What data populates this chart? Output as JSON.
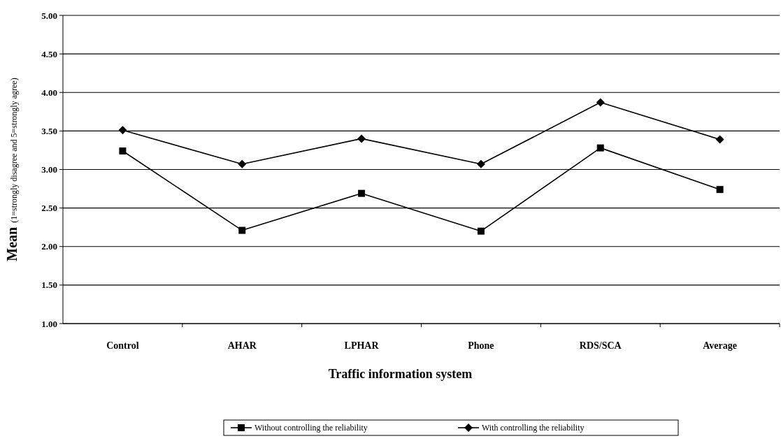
{
  "chart_data": {
    "type": "line",
    "xlabel": "Traffic information system",
    "ylabel": "Mean (1=strongly disagree and 5=strongly agree)",
    "categories": [
      "Control",
      "AHAR",
      "LPHAR",
      "Phone",
      "RDS/SCA",
      "Average"
    ],
    "series": [
      {
        "name": "Without controlling the reliability",
        "color": "#000000",
        "marker": "square",
        "values": [
          3.24,
          2.21,
          2.69,
          2.2,
          3.28,
          2.74
        ]
      },
      {
        "name": "With controlling the reliability",
        "color": "#000000",
        "marker": "diamond",
        "values": [
          3.51,
          3.07,
          3.4,
          3.07,
          3.87,
          3.39
        ]
      }
    ],
    "ylim": [
      1,
      5
    ],
    "yticks": [
      {
        "value": 1,
        "label": "1.00"
      },
      {
        "value": 1.5,
        "label": "1.50"
      },
      {
        "value": 2,
        "label": "2.00"
      },
      {
        "value": 2.5,
        "label": "2.50"
      },
      {
        "value": 3,
        "label": "3.00"
      },
      {
        "value": 3.5,
        "label": "3.50"
      },
      {
        "value": 4,
        "label": "4.00"
      },
      {
        "value": 4.5,
        "label": "4.50"
      },
      {
        "value": 5,
        "label": "5.00"
      }
    ],
    "grid": "y",
    "legend": "bottom",
    "line_style": "solid"
  }
}
